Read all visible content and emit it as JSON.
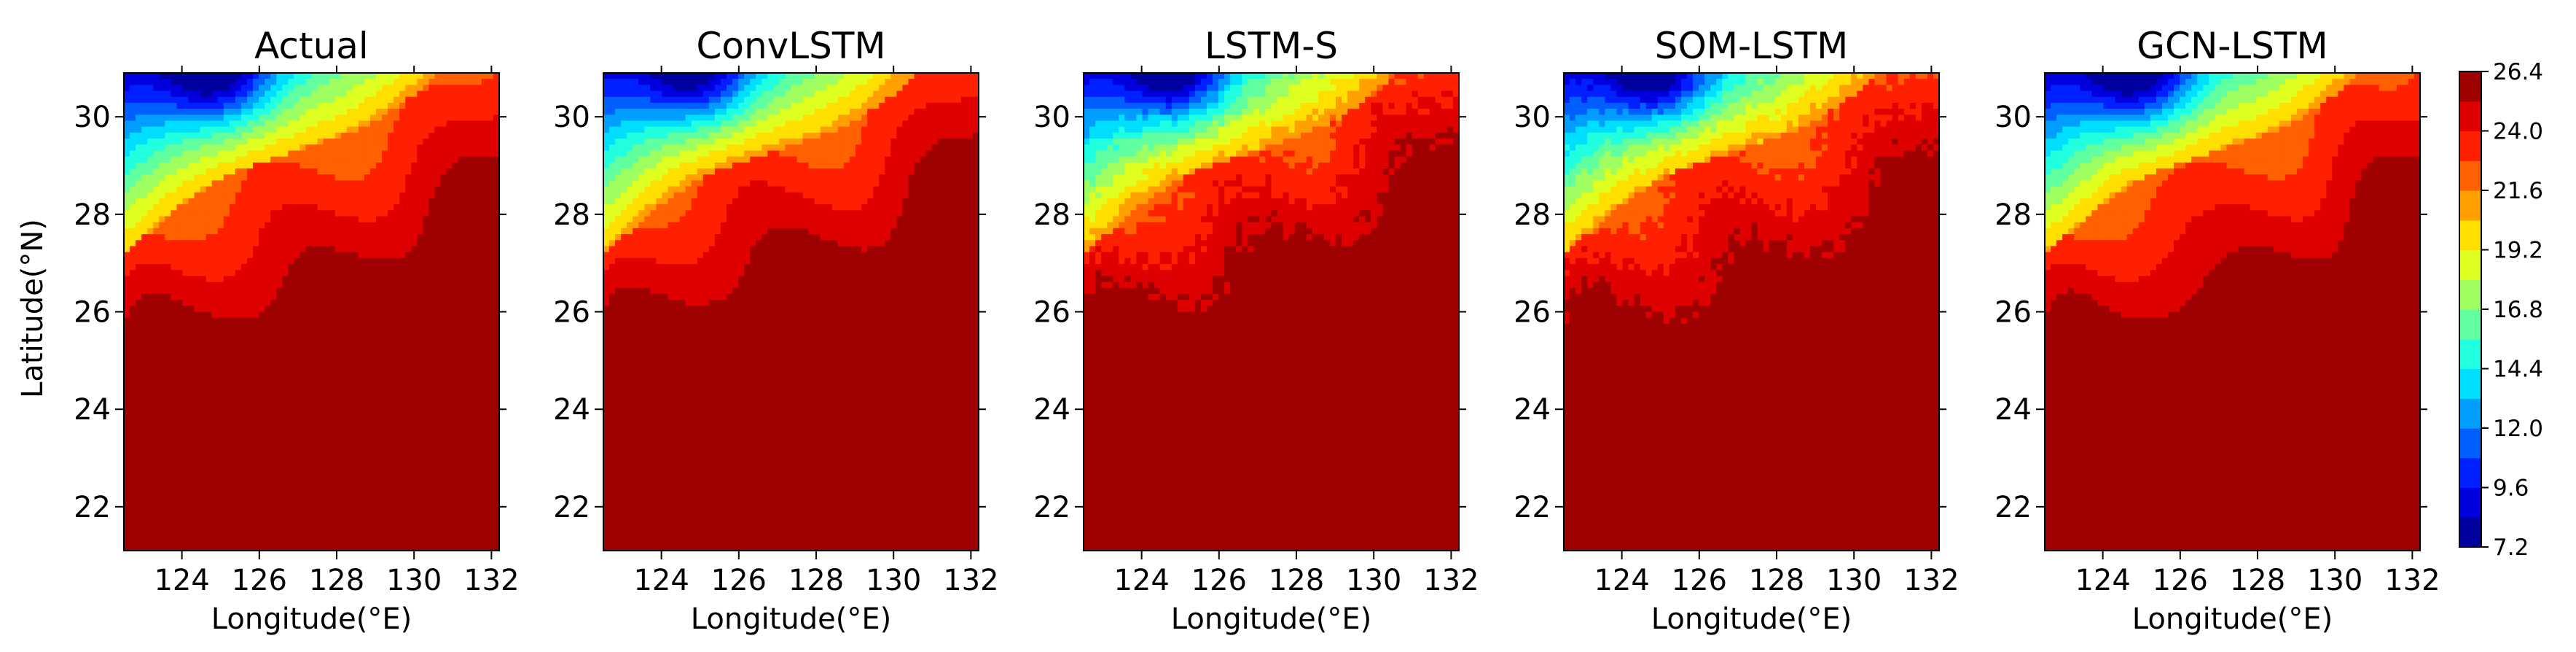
{
  "chart_data": {
    "type": "heatmap",
    "panels": [
      {
        "title": "Actual",
        "pattern": "actual"
      },
      {
        "title": "ConvLSTM",
        "pattern": "convlstm"
      },
      {
        "title": "LSTM-S",
        "pattern": "lstms"
      },
      {
        "title": "SOM-LSTM",
        "pattern": "somlstm"
      },
      {
        "title": "GCN-LSTM",
        "pattern": "gcnlstm"
      }
    ],
    "xlabel": "Longitude(°E)",
    "ylabel": "Latitude(°N)",
    "xlim": [
      122.5,
      132.2
    ],
    "ylim": [
      21.1,
      30.9
    ],
    "xticks": [
      124,
      126,
      128,
      130,
      132
    ],
    "yticks": [
      22,
      24,
      26,
      28,
      30
    ],
    "colorbar": {
      "min": 7.2,
      "max": 26.4,
      "levels": [
        7.2,
        8.4,
        9.6,
        10.8,
        12.0,
        13.2,
        14.4,
        15.6,
        16.8,
        18.0,
        19.2,
        20.4,
        21.6,
        22.8,
        24.0,
        25.2,
        26.4
      ],
      "tick_labels": [
        "7.2",
        "9.6",
        "12.0",
        "14.4",
        "16.8",
        "19.2",
        "21.6",
        "24.0",
        "26.4"
      ],
      "colormap": "jet"
    }
  }
}
